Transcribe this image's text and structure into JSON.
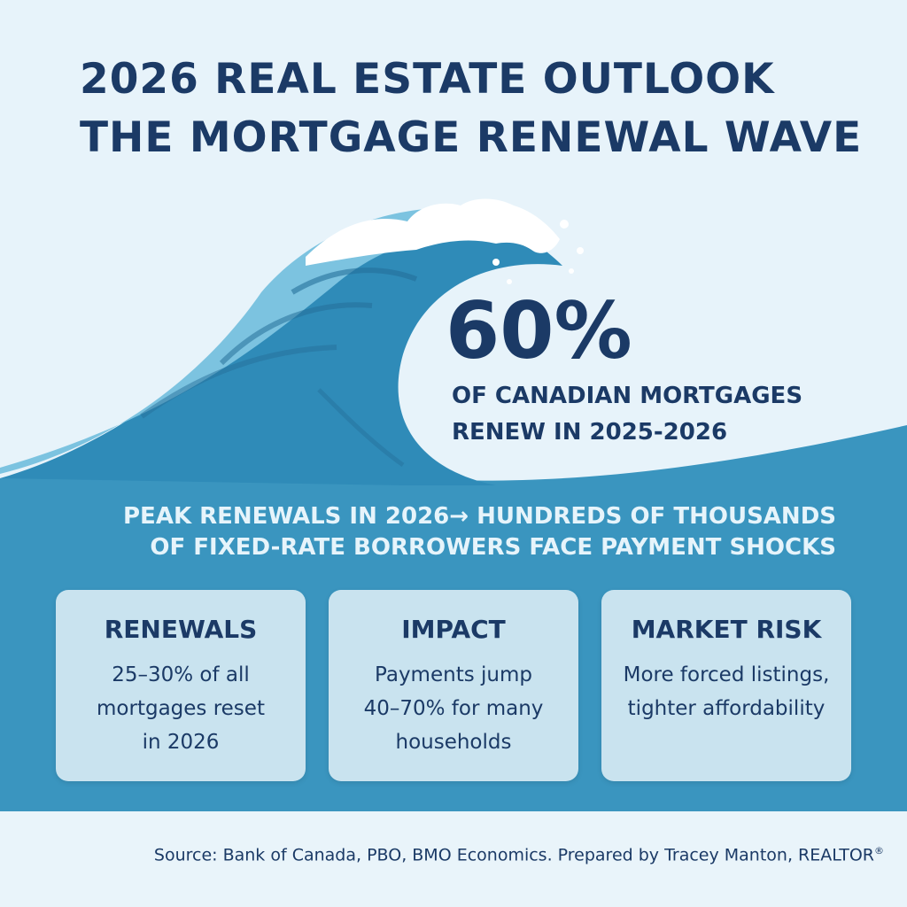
{
  "title": {
    "line1": "2026 REAL ESTATE OUTLOOK",
    "line2": "THE MORTGAGE RENEWAL WAVE"
  },
  "stat": {
    "value": "60%",
    "line1": "OF CANADIAN MORTGAGES",
    "line2": "RENEW IN 2025-2026"
  },
  "headline": {
    "line1": "PEAK RENEWALS IN 2026→ HUNDREDS OF THOUSANDS",
    "line2": "OF FIXED-RATE BORROWERS FACE PAYMENT SHOCKS"
  },
  "cards": [
    {
      "title": "RENEWALS",
      "body": "25–30% of all\nmortgages reset\nin 2026"
    },
    {
      "title": "IMPACT",
      "body": "Payments jump\n40–70% for many\nhouseholds"
    },
    {
      "title": "MARKET RISK",
      "body": "More forced listings,\ntighter affordability"
    }
  ],
  "footer": {
    "source": "Source: Bank of Canada, PBO, BMO Economics. Prepared by Tracey Manton, REALTOR",
    "trademark": "®"
  },
  "colors": {
    "navy": "#1b3a66",
    "background": "#e7f3fa",
    "wave_dark": "#2f8bb8",
    "wave_light": "#7cc3e0",
    "band": "#3a95bf",
    "card": "#c9e3ef"
  }
}
